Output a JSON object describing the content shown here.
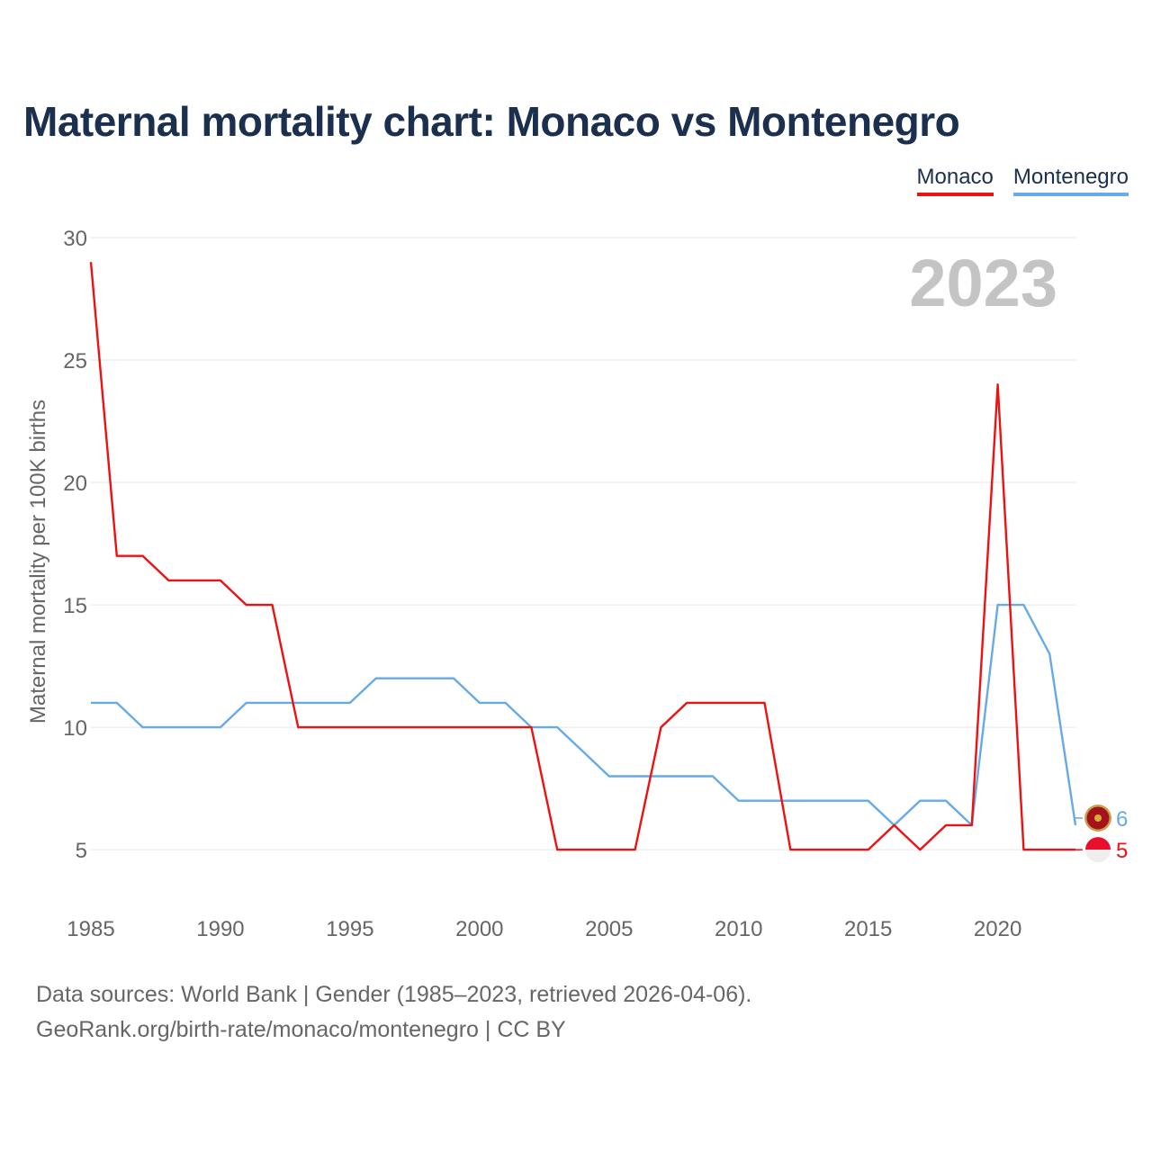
{
  "title": "Maternal mortality chart: Monaco vs Montenegro",
  "legend": [
    {
      "label": "Monaco",
      "color": "#ee1111"
    },
    {
      "label": "Montenegro",
      "color": "#66aae8"
    }
  ],
  "footer": {
    "source": "Data sources: World Bank | Gender (1985–2023, retrieved 2026-04-06).",
    "credit": "GeoRank.org/birth-rate/monaco/montenegro | CC BY"
  },
  "chart_data": {
    "type": "line",
    "title": "Maternal mortality chart: Monaco vs Montenegro",
    "xlabel": "",
    "ylabel": "Maternal mortality per 100K births",
    "year_label": "2023",
    "xlim": [
      1985,
      2023
    ],
    "ylim": [
      2.8,
      30
    ],
    "x_ticks": [
      1985,
      1990,
      1995,
      2000,
      2005,
      2010,
      2015,
      2020
    ],
    "y_ticks": [
      5,
      10,
      15,
      20,
      25,
      30
    ],
    "grid": true,
    "x": [
      1985,
      1986,
      1987,
      1988,
      1989,
      1990,
      1991,
      1992,
      1993,
      1994,
      1995,
      1996,
      1997,
      1998,
      1999,
      2000,
      2001,
      2002,
      2003,
      2004,
      2005,
      2006,
      2007,
      2008,
      2009,
      2010,
      2011,
      2012,
      2013,
      2014,
      2015,
      2016,
      2017,
      2018,
      2019,
      2020,
      2021,
      2022,
      2023
    ],
    "series": [
      {
        "name": "Monaco",
        "color": "#ee1111",
        "values": [
          29,
          17,
          17,
          16,
          16,
          16,
          15,
          15,
          10,
          10,
          10,
          10,
          10,
          10,
          10,
          10,
          10,
          10,
          5,
          5,
          5,
          5,
          10,
          11,
          11,
          11,
          11,
          5,
          5,
          5,
          5,
          6,
          5,
          6,
          6,
          24,
          5,
          5,
          5
        ],
        "end_label": "5"
      },
      {
        "name": "Montenegro",
        "color": "#66aae8",
        "values": [
          11,
          11,
          10,
          10,
          10,
          10,
          11,
          11,
          11,
          11,
          11,
          12,
          12,
          12,
          12,
          11,
          11,
          10,
          10,
          9,
          8,
          8,
          8,
          8,
          8,
          7,
          7,
          7,
          7,
          7,
          7,
          6,
          7,
          7,
          6,
          15,
          15,
          13,
          6
        ],
        "end_label": "6"
      }
    ]
  }
}
